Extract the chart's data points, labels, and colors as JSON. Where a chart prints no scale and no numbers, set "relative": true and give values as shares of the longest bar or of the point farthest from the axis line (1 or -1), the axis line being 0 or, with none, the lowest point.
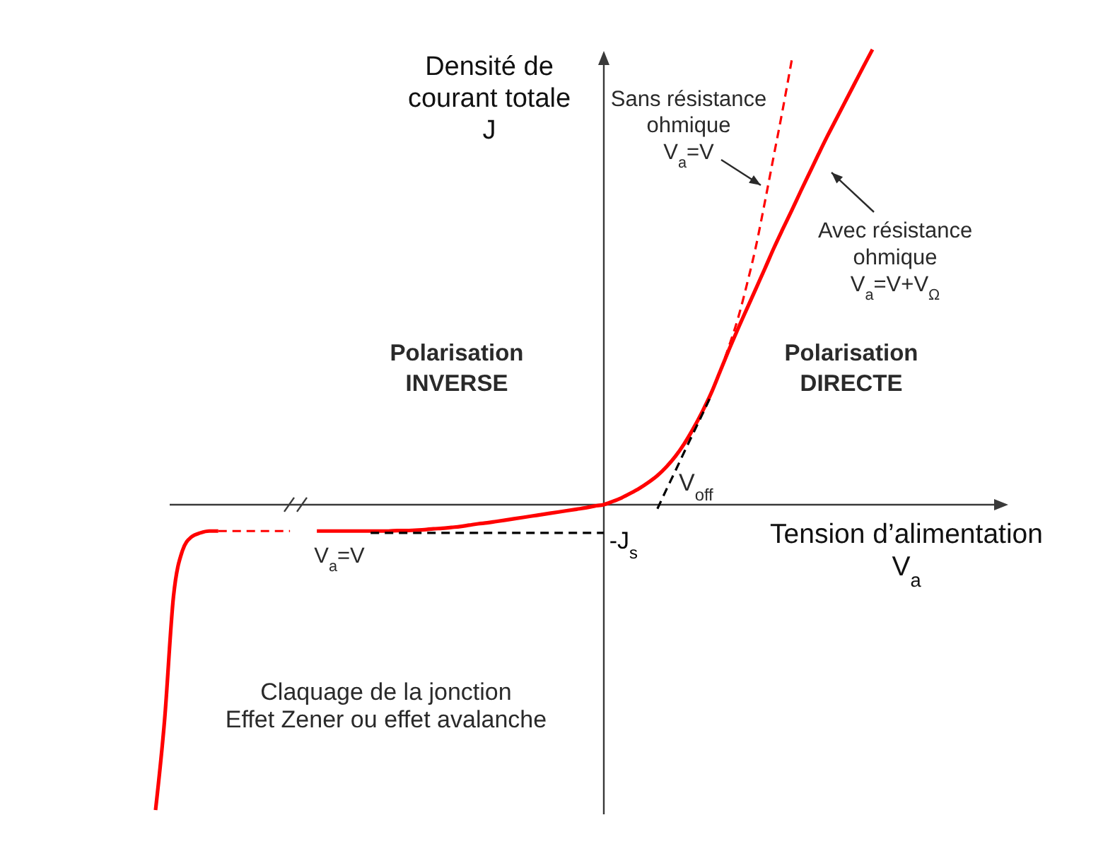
{
  "chart_data": {
    "type": "line",
    "relative": true,
    "xlabel": "Tension d’alimentation\nV$_{a}$",
    "ylabel": "Densité de\ncourant totale\nJ",
    "line_style": "solid",
    "categories": [
      null,
      null,
      null,
      null,
      null,
      null,
      null,
      null,
      null,
      null,
      null,
      null,
      null,
      null,
      null,
      null,
      null,
      null,
      null,
      null,
      null,
      null,
      null,
      null,
      null,
      null,
      null,
      null,
      null,
      null,
      null,
      null,
      null,
      null,
      null,
      null,
      null,
      null,
      null,
      null,
      null,
      null,
      null,
      null,
      null,
      null,
      null,
      null,
      null,
      null,
      null,
      null,
      null,
      null,
      null,
      null,
      null,
      null,
      null,
      null,
      null,
      null,
      null,
      null,
      null,
      null,
      null,
      null,
      null,
      null,
      null,
      null,
      null,
      null,
      null,
      null,
      null,
      null,
      null,
      null,
      null
    ],
    "series": [
      {
        "color": "#ff0000",
        "values": [
          null,
          null,
          null,
          null,
          null,
          null,
          null,
          null,
          null,
          null,
          null,
          null,
          null,
          null,
          null,
          null,
          null,
          null,
          -0.058,
          -0.058,
          -0.058,
          -0.058,
          -0.058,
          -0.058,
          -0.058,
          -0.058,
          -0.058,
          -0.057,
          -0.057,
          -0.056,
          -0.055,
          -0.053,
          -0.052,
          -0.05,
          -0.048,
          -0.045,
          -0.042,
          -0.04,
          -0.037,
          -0.034,
          -0.031,
          -0.028,
          -0.025,
          -0.022,
          -0.019,
          -0.016,
          -0.013,
          -0.01,
          -0.007,
          -0.003,
          0,
          0.007,
          0.015,
          0.025,
          0.036,
          0.049,
          0.064,
          0.083,
          0.106,
          0.134,
          0.167,
          0.204,
          0.245,
          0.293,
          0.341,
          0.387,
          0.431,
          0.475,
          0.519,
          0.564,
          0.606,
          0.647,
          0.689,
          0.73,
          0.771,
          0.811,
          0.849,
          0.887,
          0.925,
          0.963,
          1
        ]
      },
      {
        "color": "#ff0000",
        "values": [
          -0.671,
          -0.475,
          -0.202,
          -0.101,
          -0.071,
          -0.062,
          -0.058,
          -0.058,
          null,
          null,
          null,
          null,
          null,
          null,
          null,
          null,
          null,
          null,
          null,
          null,
          null,
          null,
          null,
          null,
          null,
          null,
          null,
          null,
          null,
          null,
          null,
          null,
          null,
          null,
          null,
          null,
          null,
          null,
          null,
          null,
          null,
          null,
          null,
          null,
          null,
          null,
          null,
          null,
          null,
          null,
          null,
          null,
          null,
          null,
          null,
          null,
          null,
          null,
          null,
          null,
          null,
          null,
          null,
          null,
          null,
          null,
          null,
          null,
          null,
          null,
          null,
          null,
          null,
          null,
          null,
          null,
          null,
          null,
          null,
          null,
          null
        ]
      },
      {
        "color": "#ff0000",
        "line_style": "dashed",
        "values": [
          null,
          null,
          null,
          null,
          null,
          null,
          null,
          -0.058,
          -0.058,
          -0.058,
          -0.058,
          -0.058,
          -0.058,
          -0.058,
          -0.058,
          -0.058,
          null,
          null,
          null,
          null,
          null,
          null,
          null,
          null,
          null,
          null,
          null,
          null,
          null,
          null,
          null,
          null,
          null,
          null,
          null,
          null,
          null,
          null,
          null,
          null,
          null,
          null,
          null,
          null,
          null,
          null,
          null,
          null,
          null,
          null,
          null,
          null,
          null,
          null,
          null,
          null,
          null,
          null,
          null,
          null,
          null,
          null,
          null,
          null,
          null,
          null,
          null,
          null,
          null,
          null,
          null,
          null,
          null,
          null,
          null,
          null,
          null,
          null,
          null,
          null,
          null
        ]
      },
      {
        "color": "#ff0000",
        "line_style": "dashed",
        "values": [
          null,
          null,
          null,
          null,
          null,
          null,
          null,
          null,
          null,
          null,
          null,
          null,
          null,
          null,
          null,
          null,
          null,
          null,
          null,
          null,
          null,
          null,
          null,
          null,
          null,
          null,
          null,
          null,
          null,
          null,
          null,
          null,
          null,
          null,
          null,
          null,
          null,
          null,
          null,
          null,
          null,
          null,
          null,
          null,
          null,
          null,
          null,
          null,
          null,
          null,
          null,
          null,
          null,
          null,
          null,
          null,
          null,
          null,
          null,
          null,
          null,
          null,
          null,
          0.293,
          0.349,
          0.41,
          0.485,
          0.568,
          0.666,
          0.768,
          0.87,
          0.978,
          null,
          null,
          null,
          null,
          null,
          null,
          null,
          null,
          null
        ]
      },
      {
        "name": "-J$_{s}$",
        "color": "#000000",
        "line_style": "dashed",
        "values": [
          null,
          null,
          null,
          null,
          null,
          null,
          null,
          null,
          null,
          null,
          null,
          null,
          null,
          null,
          null,
          null,
          null,
          null,
          null,
          null,
          null,
          null,
          null,
          null,
          -0.062,
          -0.062,
          -0.062,
          -0.062,
          -0.062,
          -0.062,
          -0.062,
          -0.062,
          -0.062,
          -0.062,
          -0.062,
          -0.062,
          -0.062,
          -0.062,
          -0.062,
          -0.062,
          -0.062,
          -0.062,
          -0.062,
          -0.062,
          -0.062,
          -0.062,
          -0.062,
          -0.062,
          -0.062,
          -0.062,
          -0.062,
          null,
          null,
          null,
          null,
          null,
          null,
          null,
          null,
          null,
          null,
          null,
          null,
          null,
          null,
          null,
          null,
          null,
          null,
          null,
          null,
          null,
          null,
          null,
          null,
          null,
          null,
          null,
          null,
          null,
          null
        ]
      },
      {
        "color": "#000000",
        "line_style": "dashed",
        "values": [
          null,
          null,
          null,
          null,
          null,
          null,
          null,
          null,
          null,
          null,
          null,
          null,
          null,
          null,
          null,
          null,
          null,
          null,
          null,
          null,
          null,
          null,
          null,
          null,
          null,
          null,
          null,
          null,
          null,
          null,
          null,
          null,
          null,
          null,
          null,
          null,
          null,
          null,
          null,
          null,
          null,
          null,
          null,
          null,
          null,
          null,
          null,
          null,
          null,
          null,
          null,
          null,
          null,
          null,
          null,
          null,
          -0.009,
          0.033,
          0.074,
          0.116,
          0.157,
          0.198,
          0.24,
          null,
          null,
          null,
          null,
          null,
          null,
          null,
          null,
          null,
          null,
          null,
          null,
          null,
          null,
          null,
          null,
          null,
          null
        ]
      }
    ],
    "annotations": [
      "Sans résistance\nohmique\nV$_{a}$=V",
      "Avec résistance\nohmique\nV$_{a}$=V+V$_{Ω}$",
      "Polarisation\nINVERSE",
      "Polarisation\nDIRECTE",
      "V$_{off}$",
      "V$_{a}$=V",
      "Claquage de la jonction\nEffet Zener ou effet avalanche"
    ]
  }
}
